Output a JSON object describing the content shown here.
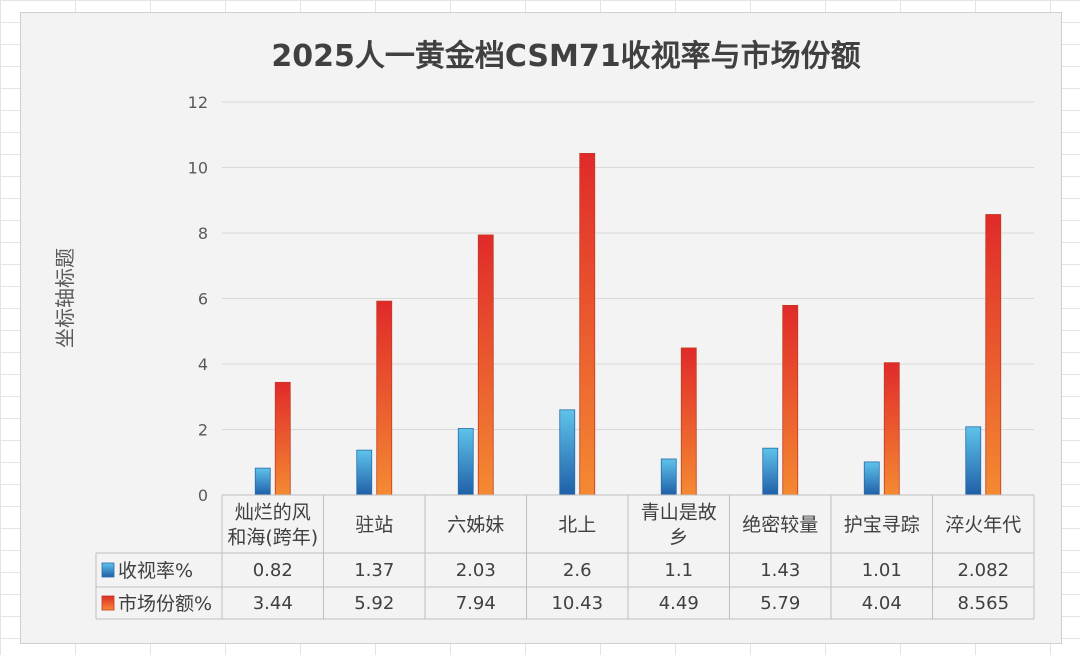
{
  "chart_data": {
    "type": "bar",
    "title": "2025人一黄金档CSM71收视率与市场份额",
    "ylabel": "坐标轴标题",
    "ylim": [
      0,
      12
    ],
    "yticks": [
      "0",
      "2",
      "4",
      "6",
      "8",
      "10",
      "12"
    ],
    "categories": [
      [
        "灿烂的风",
        "和海(跨年)"
      ],
      [
        "驻站"
      ],
      [
        "六姊妹"
      ],
      [
        "北上"
      ],
      [
        "青山是故",
        "乡"
      ],
      [
        "绝密较量"
      ],
      [
        "护宝寻踪"
      ],
      [
        "淬火年代"
      ]
    ],
    "series": [
      {
        "name": "收视率%",
        "color": "#2f7bbf",
        "values": [
          0.82,
          1.37,
          2.03,
          2.6,
          1.1,
          1.43,
          1.01,
          2.082
        ],
        "labels": [
          "0.82",
          "1.37",
          "2.03",
          "2.6",
          "1.1",
          "1.43",
          "1.01",
          "2.082"
        ]
      },
      {
        "name": "市场份额%",
        "color": "#e8472a",
        "values": [
          3.44,
          5.92,
          7.94,
          10.43,
          4.49,
          5.79,
          4.04,
          8.565
        ],
        "labels": [
          "3.44",
          "5.92",
          "7.94",
          "10.43",
          "4.49",
          "5.79",
          "4.04",
          "8.565"
        ]
      }
    ],
    "grid": true,
    "legend": "data-table"
  }
}
